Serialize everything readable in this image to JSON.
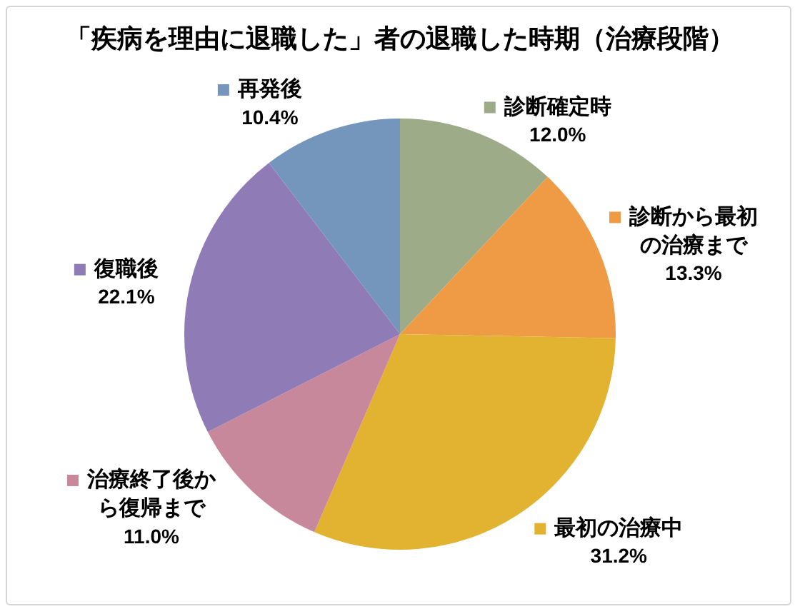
{
  "chart_data": {
    "type": "pie",
    "title": "「疾病を理由に退職した」者の退職した時期（治療段階）",
    "categories": [
      "診断確定時",
      "診断から最初の治療まで",
      "最初の治療中",
      "治療終了後から復帰まで",
      "復職後",
      "再発後"
    ],
    "values": [
      12.0,
      13.3,
      31.2,
      11.0,
      22.1,
      10.4
    ],
    "colors": [
      "#9dab88",
      "#ef9b45",
      "#e2b330",
      "#c7889c",
      "#8f7bb5",
      "#7495bc"
    ],
    "value_labels": [
      "12.0%",
      "13.3%",
      "31.2%",
      "11.0%",
      "22.1%",
      "10.4%"
    ],
    "legend": true
  }
}
